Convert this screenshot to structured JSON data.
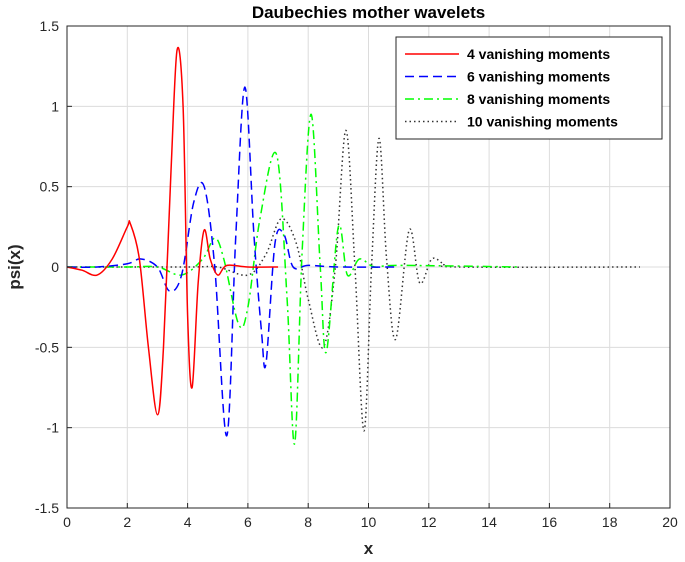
{
  "chart_data": {
    "type": "line",
    "title": "Daubechies mother wavelets",
    "xlabel": "x",
    "ylabel": "psi(x)",
    "xlim": [
      0,
      20
    ],
    "ylim": [
      -1.5,
      1.5
    ],
    "xticks": [
      0,
      2,
      4,
      6,
      8,
      10,
      12,
      14,
      16,
      18,
      20
    ],
    "yticks": [
      -1.5,
      -1,
      -0.5,
      0,
      0.5,
      1,
      1.5
    ],
    "xtick_labels": [
      "0",
      "2",
      "4",
      "6",
      "8",
      "10",
      "12",
      "14",
      "16",
      "18",
      "20"
    ],
    "ytick_labels": [
      "-1.5",
      "-1",
      "-0.5",
      "0",
      "0.5",
      "1",
      "1.5"
    ],
    "grid": true,
    "legend_position": "top-right",
    "series": [
      {
        "name": "4 vanishing moments",
        "color": "#ff0000",
        "dash": "solid",
        "x": [
          0,
          0.5,
          1.0,
          1.5,
          2.0,
          2.1,
          2.4,
          2.7,
          3.0,
          3.2,
          3.45,
          3.65,
          3.85,
          4.0,
          4.15,
          4.35,
          4.55,
          4.75,
          5.0,
          5.3,
          6.0,
          7.0
        ],
        "y": [
          0,
          -0.02,
          -0.05,
          0.05,
          0.25,
          0.27,
          0.05,
          -0.5,
          -0.92,
          -0.5,
          0.6,
          1.35,
          1.0,
          -0.3,
          -0.75,
          -0.1,
          0.23,
          0.05,
          -0.05,
          0.01,
          0,
          0
        ]
      },
      {
        "name": "6 vanishing moments",
        "color": "#0000ff",
        "dash": "dashed",
        "x": [
          0,
          1.0,
          2.0,
          2.45,
          3.0,
          3.4,
          3.8,
          4.2,
          4.55,
          4.9,
          5.3,
          5.6,
          5.9,
          6.2,
          6.45,
          6.6,
          6.9,
          7.2,
          7.5,
          8.0,
          9.0,
          11.0
        ],
        "y": [
          0,
          0,
          0.02,
          0.05,
          0.0,
          -0.15,
          -0.05,
          0.4,
          0.5,
          0.0,
          -1.05,
          0.2,
          1.12,
          0.2,
          -0.4,
          -0.6,
          0.15,
          0.2,
          0.0,
          0.01,
          0,
          0
        ]
      },
      {
        "name": "8 vanishing moments",
        "color": "#00ff00",
        "dash": "dashdot",
        "x": [
          0,
          2.0,
          3.0,
          3.8,
          4.5,
          4.9,
          5.2,
          5.7,
          6.0,
          6.4,
          6.95,
          7.3,
          7.55,
          7.8,
          8.1,
          8.4,
          8.6,
          9.0,
          9.3,
          9.7,
          10.2,
          11.0,
          15.0
        ],
        "y": [
          0,
          0,
          0.0,
          -0.05,
          0.05,
          0.18,
          0.05,
          -0.36,
          -0.25,
          0.3,
          0.7,
          -0.2,
          -1.1,
          0.1,
          0.95,
          0.0,
          -0.53,
          0.25,
          -0.05,
          0.05,
          0.0,
          0.01,
          0
        ]
      },
      {
        "name": "10 vanishing moments",
        "color": "#333333",
        "dash": "dotted",
        "x": [
          0,
          4.0,
          5.0,
          6.0,
          6.6,
          7.1,
          7.6,
          8.0,
          8.5,
          8.9,
          9.25,
          9.55,
          9.85,
          10.1,
          10.35,
          10.6,
          10.9,
          11.35,
          11.7,
          12.1,
          12.5,
          13.0,
          19.0
        ],
        "y": [
          0,
          0,
          0.0,
          -0.05,
          0.08,
          0.3,
          0.15,
          -0.2,
          -0.5,
          0.0,
          0.85,
          0.0,
          -1.02,
          0.0,
          0.8,
          0.05,
          -0.45,
          0.23,
          -0.1,
          0.05,
          0.02,
          0.0,
          0
        ]
      }
    ]
  }
}
